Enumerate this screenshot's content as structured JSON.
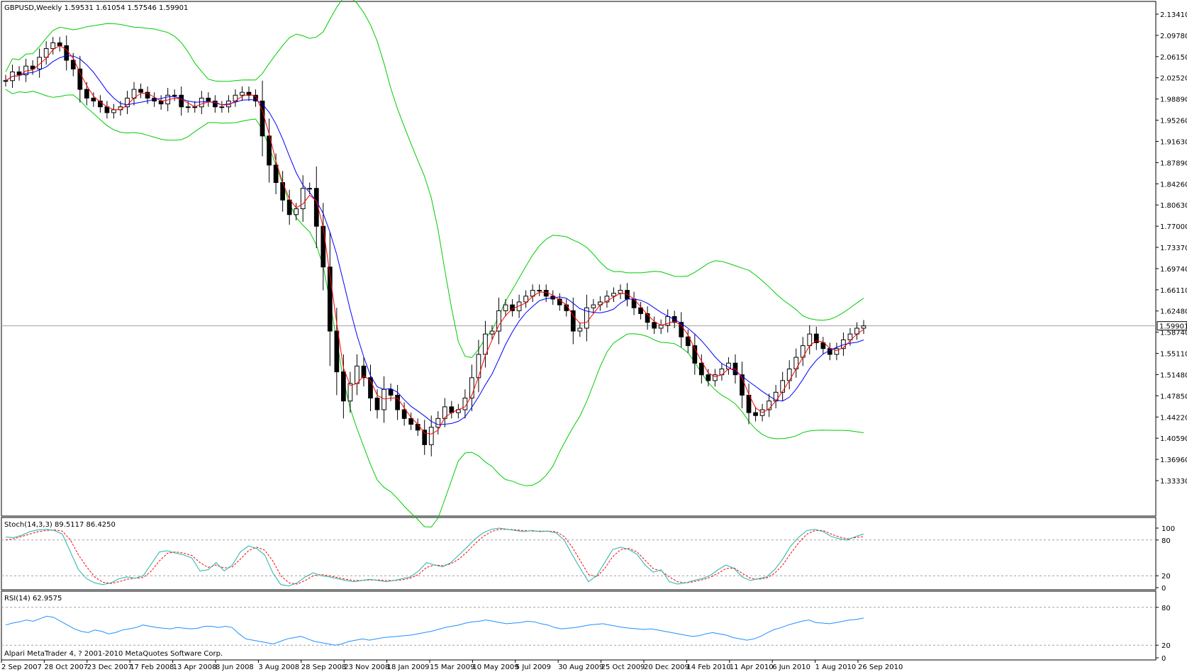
{
  "window": {
    "header": "GBPUSD,Weekly  1.59531 1.61054 1.57546 1.59901",
    "copyright": "Alpari MetaTrader 4, ? 2001-2010 MetaQuotes Software Corp."
  },
  "colors": {
    "background": "#ffffff",
    "frame": "#000000",
    "bollinger": "#00cc00",
    "ma_fast": "#ff0000",
    "ma_slow": "#0000ff",
    "stoch_main": "#20b2aa",
    "stoch_signal": "#ff0000",
    "rsi": "#1e90ff",
    "level_line": "#a0a0a0",
    "bull_candle": "#ffffff",
    "bear_candle": "#000000"
  },
  "chart_data": [
    {
      "type": "candlestick",
      "panel": "price",
      "symbol": "GBPUSD",
      "timeframe": "Weekly",
      "header": "GBPUSD,Weekly  1.59531 1.61054 1.57546 1.59901",
      "last_price": "1.59901",
      "ylim": [
        1.3333,
        2.1341
      ],
      "y_ticks": [
        "2.13410",
        "2.09780",
        "2.06150",
        "2.02520",
        "1.98890",
        "1.95260",
        "1.91630",
        "1.87890",
        "1.84260",
        "1.80630",
        "1.77000",
        "1.73370",
        "1.69740",
        "1.66110",
        "1.62480",
        "1.58740",
        "1.55110",
        "1.51480",
        "1.47850",
        "1.44220",
        "1.40590",
        "1.36960",
        "1.33330"
      ],
      "x_tick_labels": [
        "2 Sep 2007",
        "28 Oct 2007",
        "23 Dec 2007",
        "17 Feb 2008",
        "13 Apr 2008",
        "8 Jun 2008",
        "3 Aug 2008",
        "28 Sep 2008",
        "23 Nov 2008",
        "18 Jan 2009",
        "15 Mar 2009",
        "10 May 2009",
        "5 Jul 2009",
        "30 Aug 2009",
        "25 Oct 2009",
        "20 Dec 2009",
        "14 Feb 2010",
        "11 Apr 2010",
        "6 Jun 2010",
        "1 Aug 2010",
        "26 Sep 2010"
      ],
      "close_series": [
        2.02,
        2.035,
        2.03,
        2.045,
        2.04,
        2.06,
        2.075,
        2.085,
        2.08,
        2.055,
        2.04,
        2.005,
        1.99,
        1.985,
        1.975,
        1.965,
        1.97,
        1.975,
        1.99,
        2.005,
        2.0,
        1.99,
        1.985,
        1.98,
        1.995,
        1.995,
        1.975,
        1.975,
        1.975,
        1.99,
        1.985,
        1.975,
        1.975,
        1.985,
        1.995,
        2.0,
        1.995,
        1.985,
        1.925,
        1.875,
        1.845,
        1.815,
        1.79,
        1.8,
        1.835,
        1.835,
        1.77,
        1.7,
        1.59,
        1.52,
        1.47,
        1.5,
        1.53,
        1.51,
        1.475,
        1.455,
        1.49,
        1.48,
        1.455,
        1.44,
        1.43,
        1.42,
        1.395,
        1.425,
        1.44,
        1.46,
        1.45,
        1.455,
        1.475,
        1.51,
        1.55,
        1.585,
        1.59,
        1.625,
        1.635,
        1.625,
        1.64,
        1.65,
        1.66,
        1.66,
        1.65,
        1.645,
        1.635,
        1.625,
        1.59,
        1.595,
        1.63,
        1.635,
        1.64,
        1.65,
        1.655,
        1.66,
        1.645,
        1.63,
        1.62,
        1.605,
        1.595,
        1.6,
        1.615,
        1.605,
        1.58,
        1.565,
        1.535,
        1.515,
        1.505,
        1.515,
        1.525,
        1.535,
        1.515,
        1.48,
        1.45,
        1.445,
        1.455,
        1.47,
        1.485,
        1.505,
        1.525,
        1.545,
        1.565,
        1.585,
        1.57,
        1.56,
        1.55,
        1.56,
        1.575,
        1.585,
        1.595,
        1.599
      ],
      "indicators": [
        "Bollinger Bands",
        "Moving Average (fast)",
        "Moving Average (slow)"
      ]
    },
    {
      "type": "line",
      "panel": "stochastic",
      "label": "Stoch(14,3,3) 89.5117 86.4250",
      "ylim": [
        0,
        100
      ],
      "y_ticks": [
        "100",
        "80",
        "20",
        "0"
      ],
      "levels": [
        80,
        20
      ],
      "series": [
        {
          "name": "Main",
          "values": [
            85,
            84,
            88,
            94,
            97,
            98,
            96,
            90,
            60,
            30,
            15,
            8,
            5,
            8,
            15,
            18,
            16,
            20,
            40,
            60,
            62,
            58,
            55,
            50,
            28,
            30,
            42,
            28,
            38,
            60,
            70,
            66,
            55,
            25,
            5,
            3,
            8,
            18,
            25,
            20,
            18,
            15,
            12,
            10,
            12,
            14,
            12,
            10,
            12,
            15,
            18,
            28,
            42,
            38,
            35,
            42,
            55,
            68,
            82,
            92,
            98,
            100,
            98,
            96,
            94,
            96,
            94,
            95,
            92,
            80,
            55,
            32,
            10,
            20,
            42,
            64,
            68,
            64,
            56,
            38,
            26,
            30,
            10,
            6,
            8,
            12,
            15,
            20,
            30,
            38,
            32,
            18,
            12,
            15,
            18,
            30,
            48,
            70,
            85,
            96,
            98,
            94,
            86,
            82,
            80,
            86,
            90
          ]
        },
        {
          "name": "Signal",
          "values": [
            80,
            82,
            86,
            90,
            94,
            96,
            97,
            95,
            80,
            55,
            35,
            18,
            9,
            7,
            10,
            14,
            16,
            17,
            28,
            45,
            58,
            60,
            58,
            54,
            42,
            34,
            38,
            33,
            35,
            48,
            62,
            68,
            63,
            45,
            20,
            8,
            6,
            12,
            20,
            22,
            20,
            17,
            14,
            12,
            12,
            13,
            13,
            12,
            12,
            13,
            16,
            22,
            34,
            38,
            37,
            40,
            48,
            60,
            74,
            86,
            94,
            98,
            98,
            97,
            96,
            95,
            95,
            95,
            94,
            86,
            68,
            45,
            22,
            18,
            32,
            52,
            64,
            66,
            60,
            46,
            32,
            28,
            18,
            10,
            8,
            10,
            13,
            17,
            24,
            32,
            33,
            24,
            16,
            14,
            16,
            24,
            38,
            58,
            76,
            90,
            96,
            96,
            90,
            85,
            82,
            84,
            86
          ]
        }
      ]
    },
    {
      "type": "line",
      "panel": "rsi",
      "label": "RSI(14) 62.9575",
      "ylim": [
        0,
        100
      ],
      "y_ticks": [
        "80",
        "20",
        "0"
      ],
      "levels": [
        80,
        20
      ],
      "series": [
        {
          "name": "RSI",
          "values": [
            52,
            55,
            57,
            60,
            58,
            62,
            66,
            64,
            58,
            52,
            46,
            42,
            40,
            44,
            42,
            38,
            40,
            44,
            46,
            48,
            52,
            50,
            48,
            47,
            46,
            48,
            47,
            46,
            47,
            50,
            50,
            48,
            50,
            48,
            38,
            30,
            28,
            26,
            24,
            22,
            26,
            30,
            32,
            34,
            30,
            26,
            24,
            22,
            20,
            22,
            26,
            28,
            30,
            28,
            30,
            32,
            33,
            34,
            35,
            36,
            38,
            40,
            42,
            45,
            48,
            50,
            52,
            55,
            57,
            58,
            60,
            58,
            56,
            54,
            55,
            56,
            58,
            57,
            54,
            52,
            48,
            46,
            47,
            48,
            50,
            52,
            53,
            54,
            52,
            50,
            48,
            47,
            46,
            45,
            46,
            44,
            42,
            40,
            38,
            36,
            34,
            35,
            38,
            40,
            38,
            36,
            32,
            30,
            28,
            30,
            34,
            40,
            45,
            48,
            52,
            55,
            58,
            60,
            56,
            55,
            54,
            56,
            58,
            60,
            61,
            63
          ]
        }
      ]
    }
  ]
}
